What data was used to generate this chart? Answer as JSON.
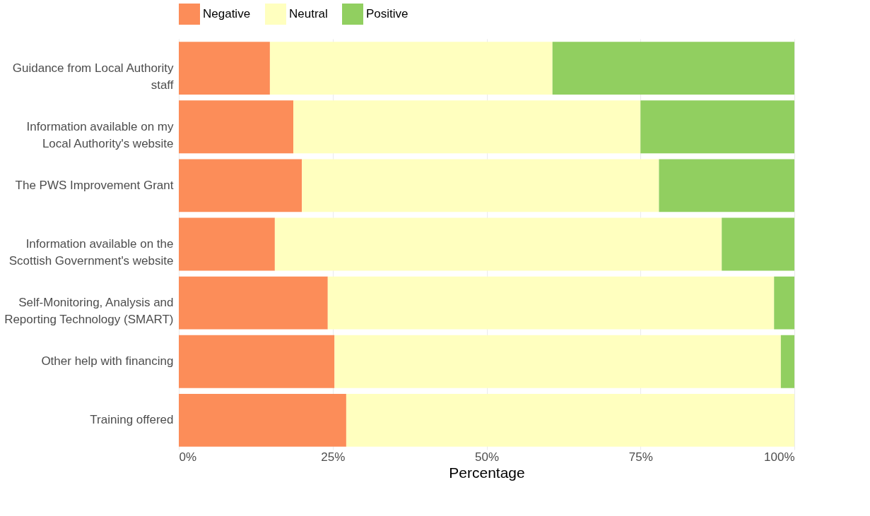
{
  "chart_data": {
    "type": "bar",
    "orientation": "horizontal",
    "stacked": true,
    "categories": [
      "Guidance from Local Authority\nstaff",
      "Information available on my\nLocal Authority's website",
      "The PWS Improvement Grant",
      "Information available on the\nScottish Government's website",
      "Self-Monitoring, Analysis and\nReporting Technology (SMART)",
      "Other help with financing",
      "Training offered"
    ],
    "series": [
      {
        "name": "Negative",
        "color": "#fc8d59",
        "values": [
          14.8,
          18.6,
          20.0,
          15.6,
          24.2,
          25.3,
          27.2
        ]
      },
      {
        "name": "Neutral",
        "color": "#ffffbf",
        "values": [
          45.9,
          56.4,
          58.0,
          72.6,
          72.5,
          72.5,
          72.8
        ]
      },
      {
        "name": "Positive",
        "color": "#91cf60",
        "values": [
          39.3,
          25.0,
          22.0,
          11.8,
          3.3,
          2.2,
          0
        ]
      }
    ],
    "xlabel": "Percentage",
    "xlim": [
      0,
      100
    ],
    "xticks": [
      {
        "value": 0,
        "label": "0%"
      },
      {
        "value": 25,
        "label": "25%"
      },
      {
        "value": 50,
        "label": "50%"
      },
      {
        "value": 75,
        "label": "75%"
      },
      {
        "value": 100,
        "label": "100%"
      }
    ],
    "grid": "x",
    "legend": "top"
  }
}
